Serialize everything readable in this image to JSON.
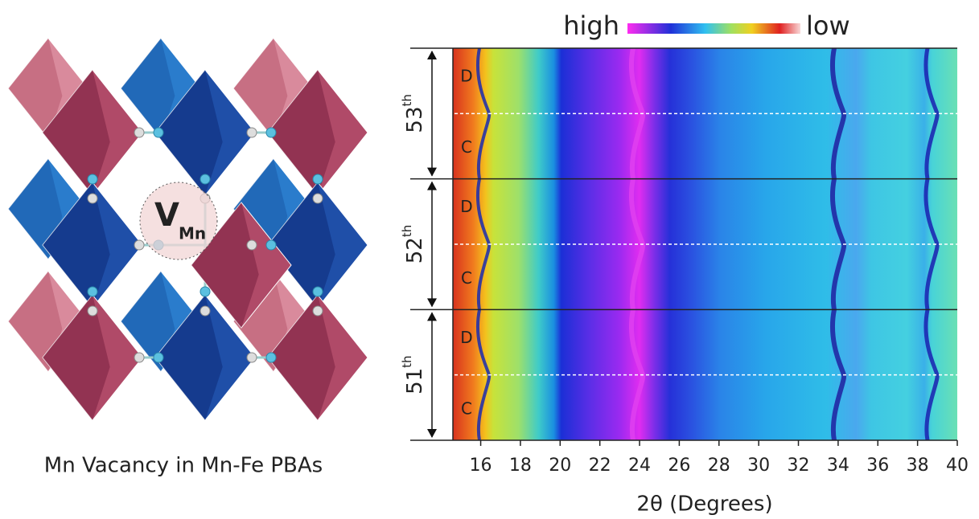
{
  "structure": {
    "vacancy_symbol": "V",
    "vacancy_subscript": "Mn",
    "caption": "Mn Vacancy in Mn-Fe PBAs"
  },
  "colorbar": {
    "high_label": "high",
    "low_label": "low"
  },
  "heatmap": {
    "xlabel": "2θ (Degrees)",
    "xlim": [
      14.6,
      40
    ],
    "xticks": [
      16,
      18,
      20,
      22,
      24,
      26,
      28,
      30,
      32,
      34,
      36,
      38,
      40
    ],
    "cycles": [
      {
        "label": "53",
        "suffix": "th",
        "segments": [
          "D",
          "C"
        ]
      },
      {
        "label": "52",
        "suffix": "th",
        "segments": [
          "D",
          "C"
        ]
      },
      {
        "label": "51",
        "suffix": "th",
        "segments": [
          "D",
          "C"
        ]
      }
    ]
  }
}
